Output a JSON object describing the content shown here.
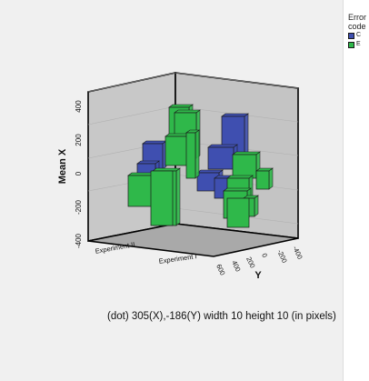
{
  "chart_data": {
    "type": "bar3d",
    "title": "",
    "ylabel": "Mean X",
    "y3_label": "Y",
    "zlim": [
      -400,
      400
    ],
    "z_ticks": [
      "400",
      "200",
      "0",
      "-200",
      "-400"
    ],
    "x_categories": [
      "Experiment II",
      "Experiment I"
    ],
    "y_ticks": [
      "600",
      "400",
      "200",
      "0",
      "-200",
      "-400"
    ],
    "legend": {
      "title_line1": "Error",
      "title_line2": "code",
      "items": [
        {
          "label": "C",
          "color": "#3f4fb0"
        },
        {
          "label": "E",
          "color": "#2fb84a"
        }
      ]
    }
  },
  "caption": "(dot) 305(X),-186(Y) width  10  height  10 (in pixels)"
}
